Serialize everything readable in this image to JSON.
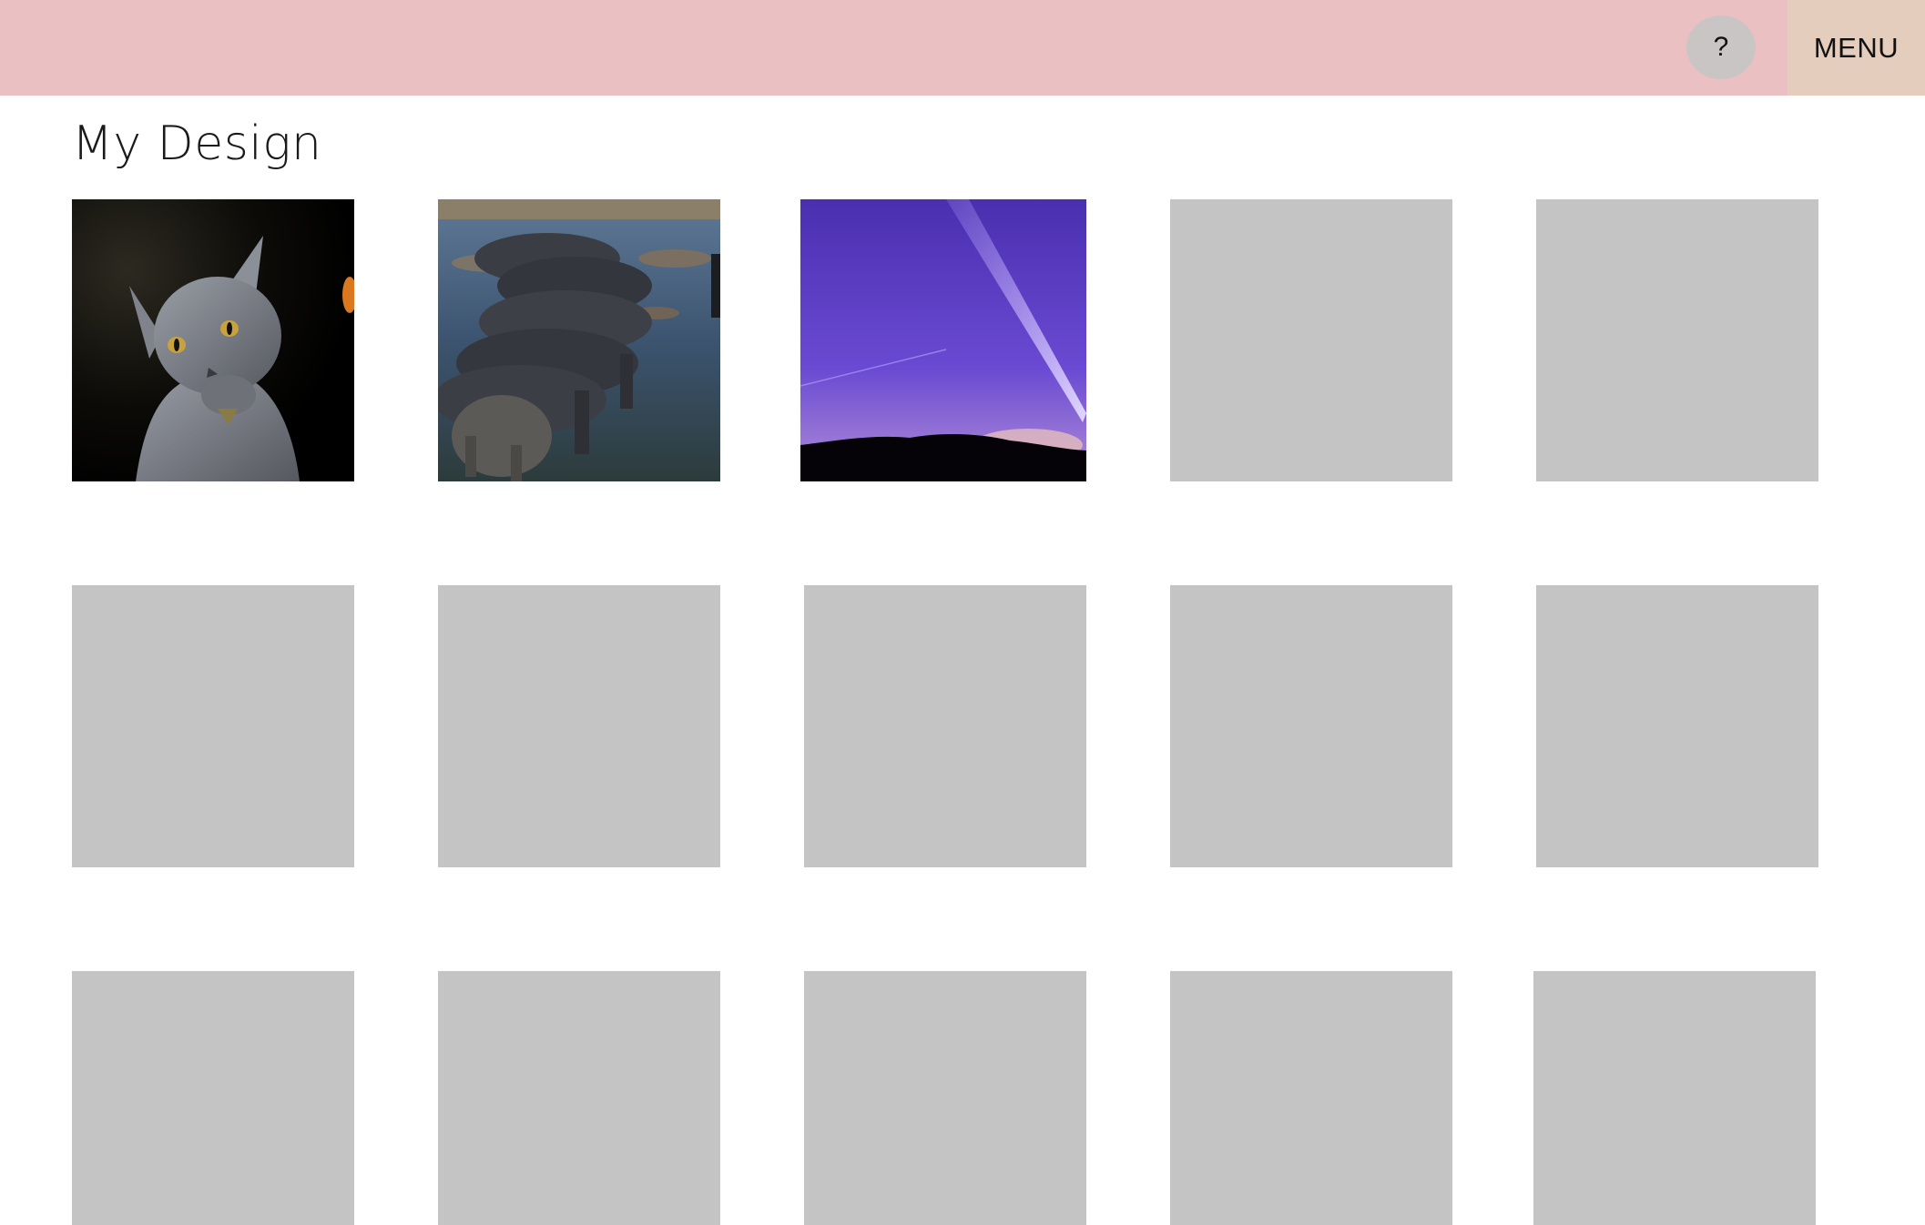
{
  "header": {
    "help_label": "?",
    "menu_label": "MENU",
    "bar_color": "#ebc0c2",
    "menu_color": "#e5cdbd"
  },
  "page": {
    "title": "My Design"
  },
  "gallery": {
    "tiles": [
      {
        "content": "cat-photo"
      },
      {
        "content": "elephants-photo"
      },
      {
        "content": "night-sky-photo"
      },
      {
        "content": "empty"
      },
      {
        "content": "empty"
      },
      {
        "content": "empty"
      },
      {
        "content": "empty"
      },
      {
        "content": "empty"
      },
      {
        "content": "empty"
      },
      {
        "content": "empty"
      },
      {
        "content": "empty"
      },
      {
        "content": "empty"
      },
      {
        "content": "empty"
      },
      {
        "content": "empty"
      },
      {
        "content": "empty"
      }
    ],
    "placeholder_color": "#c4c4c4"
  }
}
